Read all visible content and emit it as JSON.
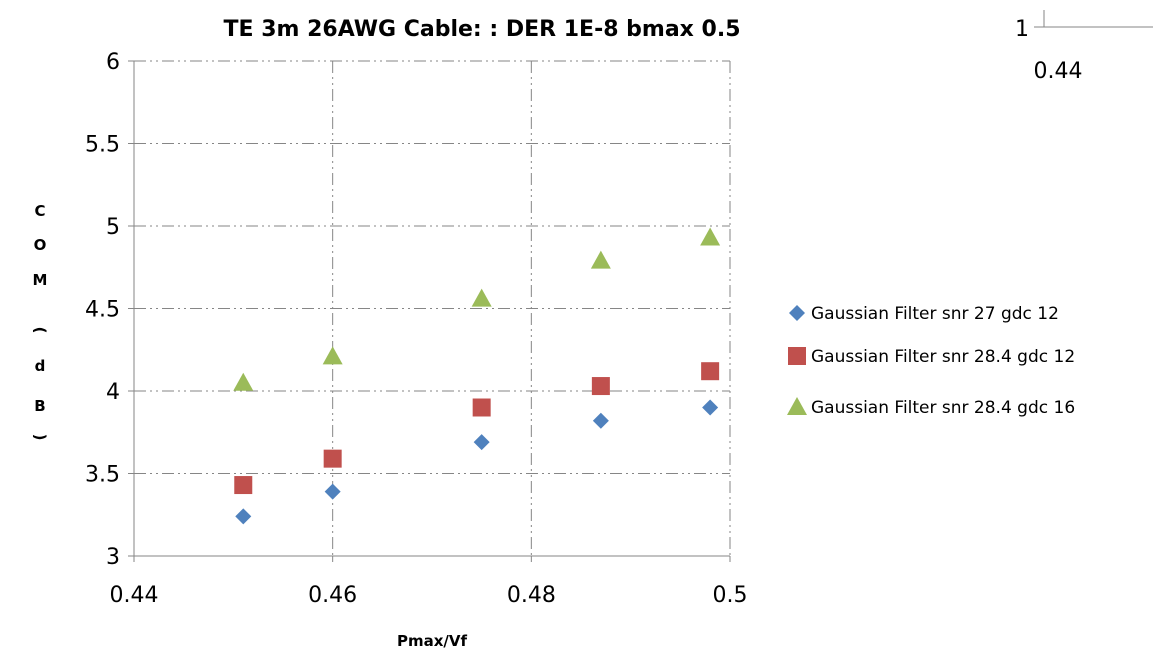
{
  "chart_data": {
    "type": "scatter",
    "title": "TE 3m 26AWG Cable: : DER 1E-8 bmax 0.5",
    "xlabel": "Pmax/Vf",
    "ylabel": "COM (dB)",
    "xlim": [
      0.44,
      0.5
    ],
    "ylim": [
      3,
      6
    ],
    "x_ticks": [
      0.44,
      0.46,
      0.48,
      0.5
    ],
    "x_tick_labels": [
      "0.44",
      "0.46",
      "0.48",
      "0.5"
    ],
    "y_ticks": [
      3,
      3.5,
      4,
      4.5,
      5,
      5.5,
      6
    ],
    "y_tick_labels": [
      "3",
      "3.5",
      "4",
      "4.5",
      "5",
      "5.5",
      "6"
    ],
    "grid": true,
    "legend_position": "right",
    "series": [
      {
        "name": "Gaussian Filter snr 27 gdc 12",
        "marker": "diamond",
        "color": "#4F81BD",
        "x": [
          0.451,
          0.46,
          0.475,
          0.487,
          0.498
        ],
        "y": [
          3.24,
          3.39,
          3.69,
          3.82,
          3.9
        ]
      },
      {
        "name": "Gaussian Filter snr 28.4 gdc 12",
        "marker": "square",
        "color": "#C0504D",
        "x": [
          0.451,
          0.46,
          0.475,
          0.487,
          0.498
        ],
        "y": [
          3.43,
          3.59,
          3.9,
          4.03,
          4.12
        ]
      },
      {
        "name": "Gaussian Filter snr 28.4 gdc 16",
        "marker": "triangle",
        "color": "#9BBB59",
        "x": [
          0.451,
          0.46,
          0.475,
          0.487,
          0.498
        ],
        "y": [
          4.05,
          4.21,
          4.56,
          4.79,
          4.93
        ]
      }
    ]
  },
  "corner_fragment": {
    "label_1": "1",
    "label_2": "0.44"
  }
}
